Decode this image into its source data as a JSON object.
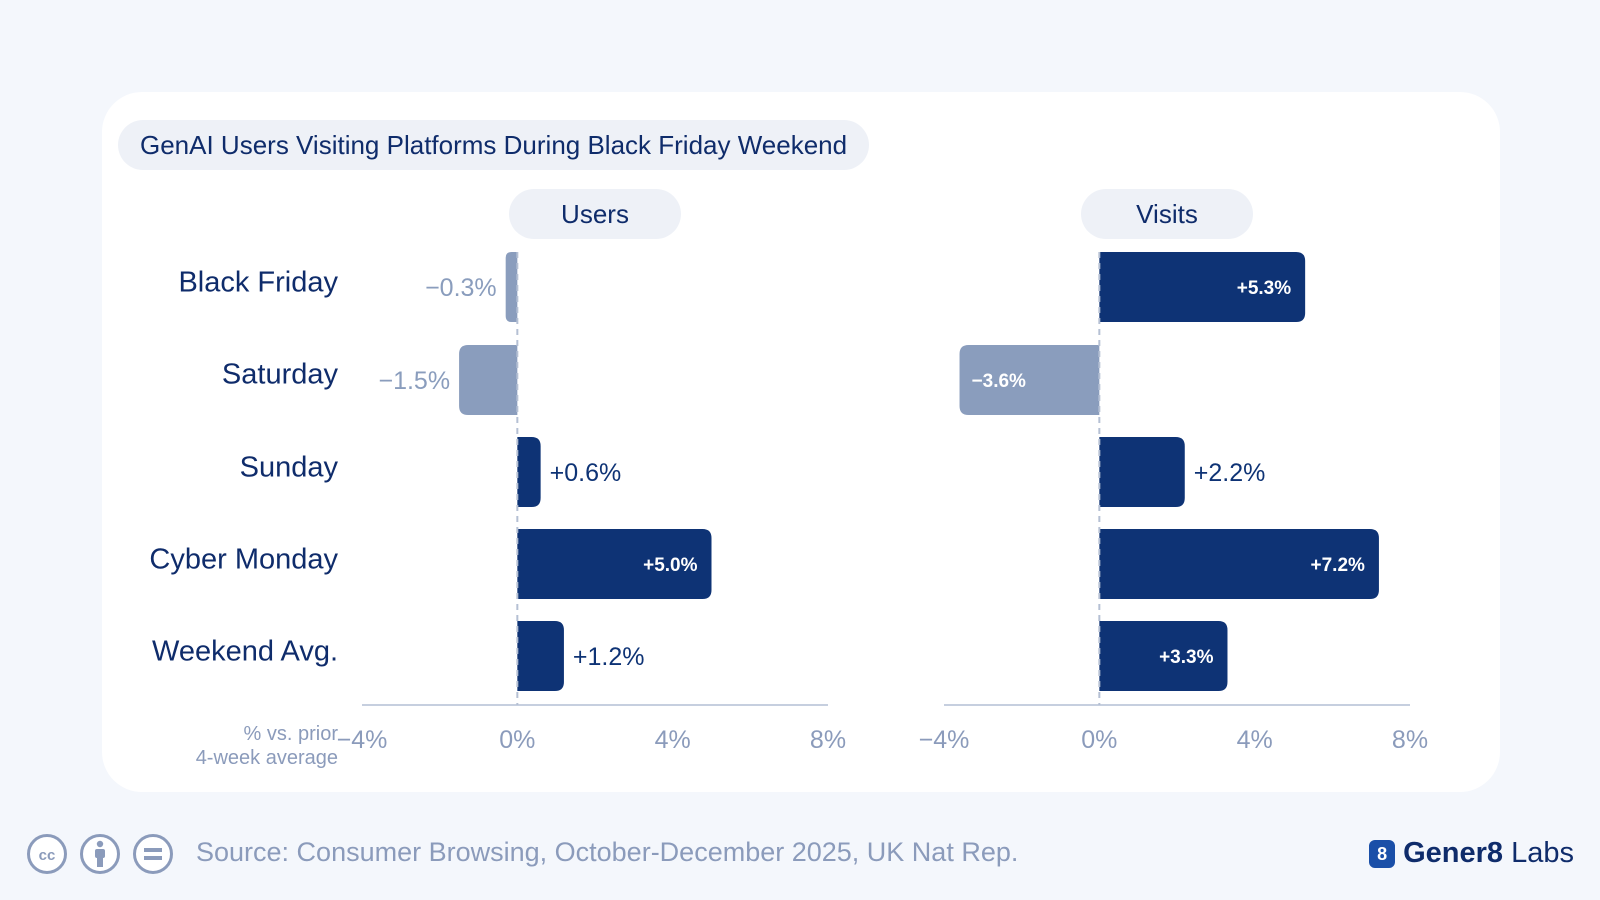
{
  "title": "GenAI Users Visiting Platforms During Black Friday Weekend",
  "axis_note_line1": "% vs. prior",
  "axis_note_line2": "4-week average",
  "footer": {
    "source": "Source: Consumer Browsing, October-December 2025, UK Nat Rep.",
    "brand_bold": "Gener8",
    "brand_rest": " Labs",
    "brand_logo_char": "8",
    "license_icons": [
      "cc-icon",
      "attribution-icon",
      "no-derivatives-icon"
    ]
  },
  "colors": {
    "positive": "#0e3375",
    "negative": "#8a9dbd",
    "background": "#f4f7fc",
    "card": "#ffffff",
    "text": "#0f2c6b",
    "muted": "#8b9bbb"
  },
  "chart_data": {
    "type": "bar",
    "orientation": "horizontal",
    "title": "GenAI Users Visiting Platforms During Black Friday Weekend",
    "categories": [
      "Black Friday",
      "Saturday",
      "Sunday",
      "Cyber Monday",
      "Weekend Avg."
    ],
    "xlim": [
      -4,
      8
    ],
    "xticks": [
      -4,
      0,
      4,
      8
    ],
    "tick_labels": [
      "−4%",
      "0%",
      "4%",
      "8%"
    ],
    "series": [
      {
        "name": "Users",
        "values": [
          -0.3,
          -1.5,
          0.6,
          5.0,
          1.2
        ],
        "labels": [
          "−0.3%",
          "−1.5%",
          "+0.6%",
          "+5.0%",
          "+1.2%"
        ]
      },
      {
        "name": "Visits",
        "values": [
          5.3,
          -3.6,
          2.2,
          7.2,
          3.3
        ],
        "labels": [
          "+5.3%",
          "−3.6%",
          "+2.2%",
          "+7.2%",
          "+3.3%"
        ]
      }
    ]
  }
}
